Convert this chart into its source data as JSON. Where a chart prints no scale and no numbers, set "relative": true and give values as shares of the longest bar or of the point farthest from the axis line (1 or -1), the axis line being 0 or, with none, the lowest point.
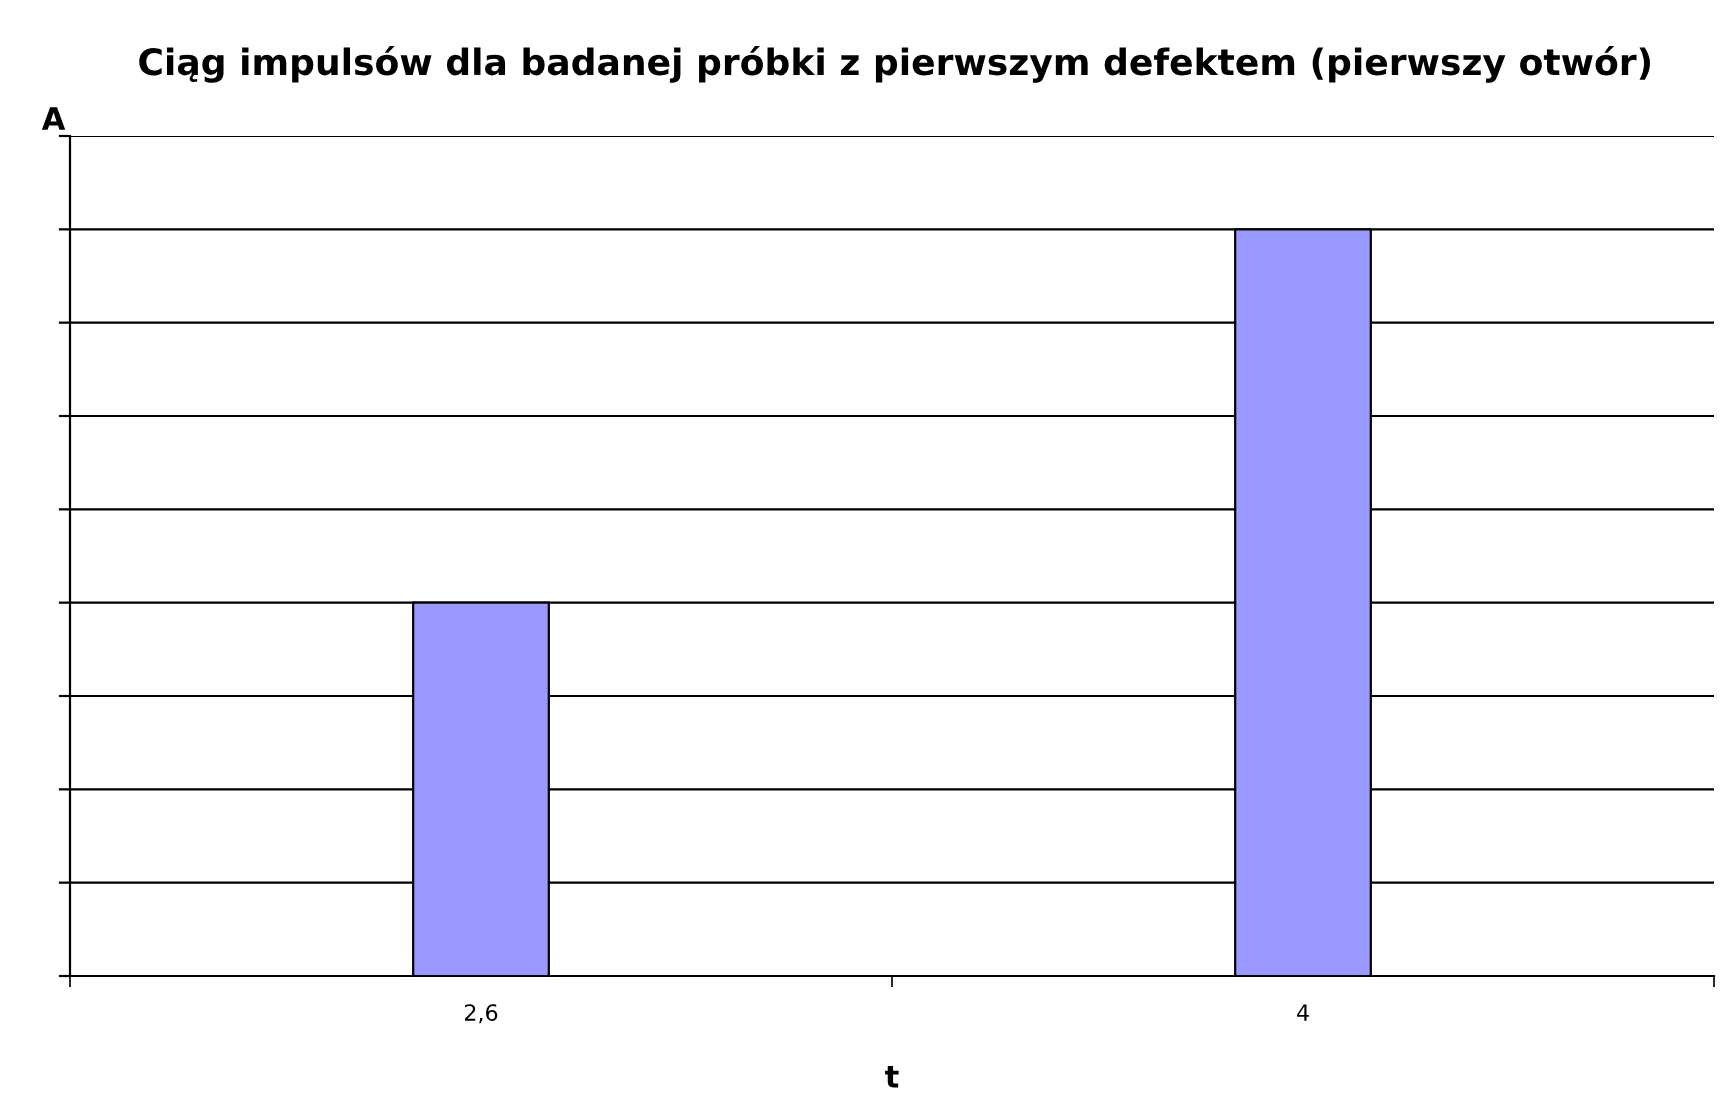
{
  "chart_data": {
    "type": "bar",
    "title": "Ciąg impulsów dla badanej próbki z pierwszym defektem (pierwszy otwór)",
    "xlabel": "t",
    "ylabel": "A",
    "categories": [
      "2,6",
      "4"
    ],
    "series": [
      {
        "color": "#9999ff",
        "values": [
          0.5,
          1
        ]
      }
    ],
    "relative": true,
    "grid": "y",
    "legend": false
  }
}
